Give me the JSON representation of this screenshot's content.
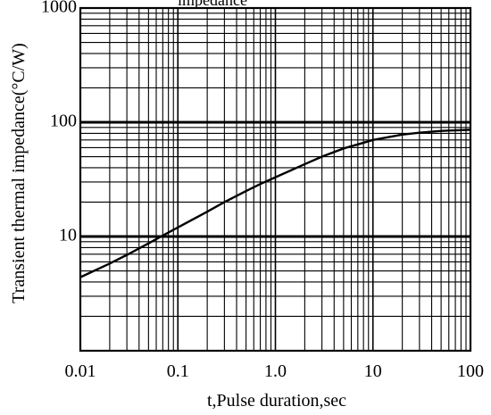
{
  "chart_data": {
    "type": "line",
    "title": "impedance",
    "xlabel": "t,Pulse duration,sec",
    "ylabel": "Transient thermal impedance(°C/W)",
    "x_scale": "log",
    "y_scale": "log",
    "xlim": [
      0.01,
      100
    ],
    "ylim": [
      1,
      1000
    ],
    "grid": true,
    "x_ticks": [
      {
        "value": 0.01,
        "label": "0.01"
      },
      {
        "value": 0.1,
        "label": "0.1"
      },
      {
        "value": 1,
        "label": "1.0"
      },
      {
        "value": 10,
        "label": "10"
      },
      {
        "value": 100,
        "label": "100"
      }
    ],
    "y_ticks": [
      {
        "value": 10,
        "label": "10"
      },
      {
        "value": 100,
        "label": "100"
      },
      {
        "value": 1000,
        "label": "1000"
      }
    ],
    "series": [
      {
        "x": [
          0.01,
          0.02,
          0.03,
          0.05,
          0.07,
          0.1,
          0.2,
          0.3,
          0.5,
          0.7,
          1,
          2,
          3,
          5,
          7,
          10,
          20,
          30,
          50,
          70,
          100
        ],
        "y": [
          4.4,
          5.8,
          6.9,
          8.7,
          10.2,
          12.0,
          16.5,
          20.0,
          25.0,
          28.8,
          33.0,
          43.0,
          50.0,
          59.0,
          64.0,
          70.0,
          78.0,
          81.0,
          84.0,
          85.0,
          86.0
        ]
      }
    ]
  }
}
